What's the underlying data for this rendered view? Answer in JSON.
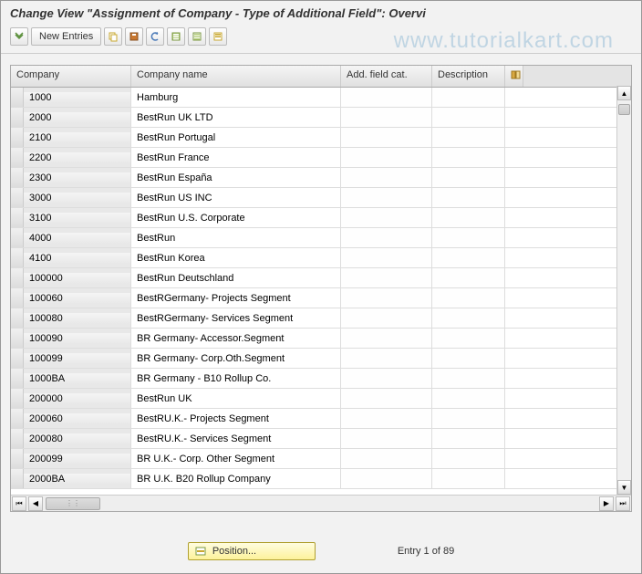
{
  "title": "Change View \"Assignment of Company - Type of Additional Field\": Overvi",
  "watermark": "www.tutorialkart.com",
  "toolbar": {
    "new_entries_label": "New Entries"
  },
  "table": {
    "columns": {
      "company": "Company",
      "company_name": "Company name",
      "add_field_cat": "Add. field cat.",
      "description": "Description"
    },
    "rows": [
      {
        "company": "1000",
        "name": "Hamburg",
        "add": "",
        "desc": ""
      },
      {
        "company": "2000",
        "name": "BestRun UK LTD",
        "add": "",
        "desc": ""
      },
      {
        "company": "2100",
        "name": "BestRun Portugal",
        "add": "",
        "desc": ""
      },
      {
        "company": "2200",
        "name": "BestRun France",
        "add": "",
        "desc": ""
      },
      {
        "company": "2300",
        "name": "BestRun España",
        "add": "",
        "desc": ""
      },
      {
        "company": "3000",
        "name": "BestRun US INC",
        "add": "",
        "desc": ""
      },
      {
        "company": "3100",
        "name": "BestRun U.S. Corporate",
        "add": "",
        "desc": ""
      },
      {
        "company": "4000",
        "name": "BestRun",
        "add": "",
        "desc": ""
      },
      {
        "company": "4100",
        "name": "BestRun Korea",
        "add": "",
        "desc": ""
      },
      {
        "company": "100000",
        "name": "BestRun Deutschland",
        "add": "",
        "desc": ""
      },
      {
        "company": "100060",
        "name": "BestRGermany- Projects Segment",
        "add": "",
        "desc": ""
      },
      {
        "company": "100080",
        "name": "BestRGermany- Services Segment",
        "add": "",
        "desc": ""
      },
      {
        "company": "100090",
        "name": "BR Germany- Accessor.Segment",
        "add": "",
        "desc": ""
      },
      {
        "company": "100099",
        "name": "BR Germany- Corp.Oth.Segment",
        "add": "",
        "desc": ""
      },
      {
        "company": "1000BA",
        "name": "BR Germany - B10 Rollup Co.",
        "add": "",
        "desc": ""
      },
      {
        "company": "200000",
        "name": "BestRun UK",
        "add": "",
        "desc": ""
      },
      {
        "company": "200060",
        "name": "BestRU.K.-    Projects Segment",
        "add": "",
        "desc": ""
      },
      {
        "company": "200080",
        "name": "BestRU.K.-    Services Segment",
        "add": "",
        "desc": ""
      },
      {
        "company": "200099",
        "name": "BR U.K.- Corp. Other Segment",
        "add": "",
        "desc": ""
      },
      {
        "company": "2000BA",
        "name": "BR  U.K. B20 Rollup Company",
        "add": "",
        "desc": ""
      }
    ]
  },
  "position_button": "Position...",
  "entry_status": "Entry 1 of 89",
  "colors": {
    "background": "#f2f2f2",
    "header_gradient_top": "#f5f5f5",
    "header_gradient_bottom": "#e0e0e0",
    "position_btn_bg": "#fdf29a",
    "border": "#aaaaaa"
  }
}
